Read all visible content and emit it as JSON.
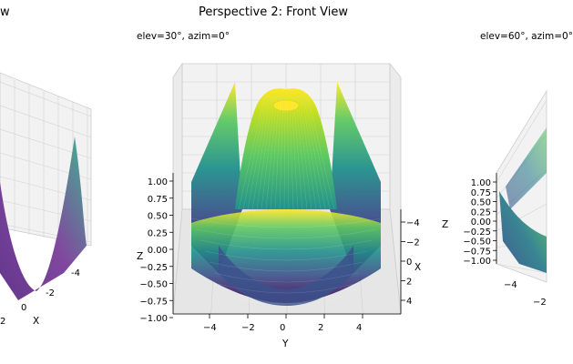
{
  "figure": {
    "title": "Perspective 2: Front View",
    "left_title_fragment": "w"
  },
  "chart_data": [
    {
      "type": "surface3d",
      "panel": "left",
      "subtitle": "",
      "x_ticks_visible": [
        "-4",
        "-2",
        "0"
      ],
      "y_ticks_visible": [
        "2"
      ],
      "xlabel": "X",
      "colormap": "magma-like (purple-teal)"
    },
    {
      "type": "surface3d",
      "panel": "center",
      "subtitle": "elev=30°, azim=0°",
      "elev": 30,
      "azim": 0,
      "xlabel": "X",
      "ylabel": "Y",
      "zlabel": "Z",
      "x_ticks": [
        "−4",
        "−2",
        "0",
        "2",
        "4"
      ],
      "y_ticks": [
        "−4",
        "−2",
        "0",
        "2",
        "4"
      ],
      "z_ticks": [
        "1.00",
        "0.75",
        "0.50",
        "0.25",
        "0.00",
        "−0.25",
        "−0.50",
        "−0.75",
        "−1.00"
      ],
      "zlim": [
        -1,
        1
      ],
      "colormap": "viridis"
    },
    {
      "type": "surface3d",
      "panel": "right",
      "subtitle": "elev=60°, azim=0°",
      "elev": 60,
      "azim": 0,
      "zlabel": "Z",
      "z_ticks": [
        "1.00",
        "0.75",
        "0.50",
        "0.25",
        "0.00",
        "−0.25",
        "−0.50",
        "−0.75",
        "−1.00"
      ],
      "x_ticks_visible": [
        "−4",
        "−2"
      ],
      "colormap": "viridis"
    }
  ],
  "colors": {
    "viridis_low": "#440154",
    "viridis_mid": "#21918c",
    "viridis_high": "#fde725",
    "pane": "#f2f2f2",
    "grid": "#d0d0d0"
  }
}
